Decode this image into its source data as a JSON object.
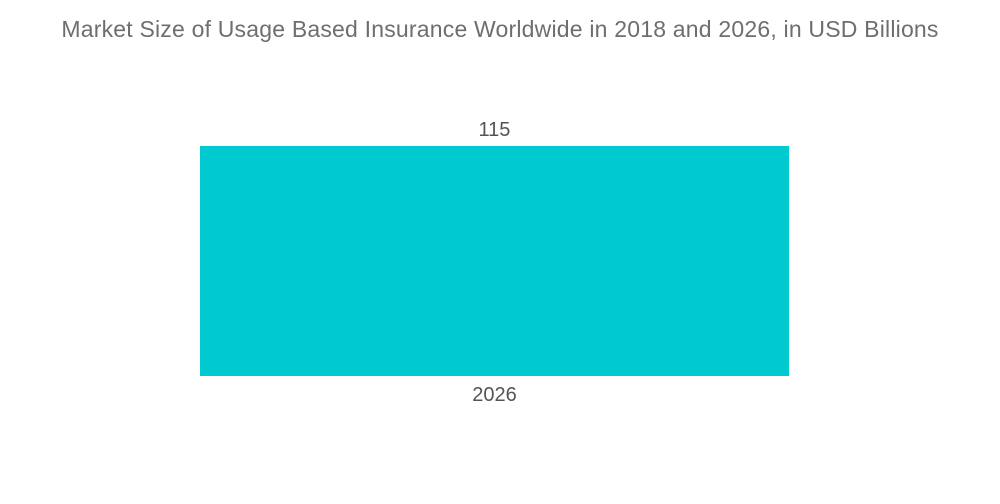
{
  "chart_data": {
    "type": "bar",
    "title": "Market Size of Usage Based Insurance Worldwide in 2018 and 2026, in USD Billions",
    "categories": [
      "2026"
    ],
    "values": [
      115
    ],
    "value_labels": [
      "115"
    ],
    "xlabel": "",
    "ylabel": "",
    "ylim": [
      0,
      115
    ],
    "grid": false,
    "legend": "none",
    "axes_visible": false,
    "bar_color": "#00CAD0",
    "title_color": "#6E6E6E",
    "label_color": "#545454",
    "background_color": "#FFFFFF"
  }
}
